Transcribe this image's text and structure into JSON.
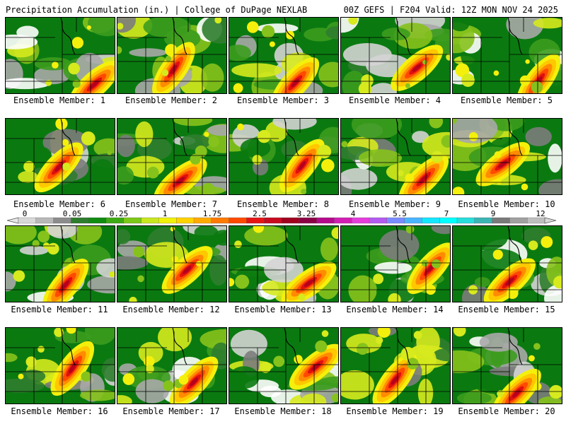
{
  "header": {
    "title": "Precipitation Accumulation (in.) | College of DuPage NEXLAB",
    "run_info": "00Z GEFS | F204 Valid: 12Z MON NOV 24 2025"
  },
  "members": [
    {
      "label": "Ensemble Member: 1",
      "member": 1
    },
    {
      "label": "Ensemble Member: 2",
      "member": 2
    },
    {
      "label": "Ensemble Member: 3",
      "member": 3
    },
    {
      "label": "Ensemble Member: 4",
      "member": 4
    },
    {
      "label": "Ensemble Member: 5",
      "member": 5
    },
    {
      "label": "Ensemble Member: 6",
      "member": 6
    },
    {
      "label": "Ensemble Member: 7",
      "member": 7
    },
    {
      "label": "Ensemble Member: 8",
      "member": 8
    },
    {
      "label": "Ensemble Member: 9",
      "member": 9
    },
    {
      "label": "Ensemble Member: 10",
      "member": 10
    },
    {
      "label": "Ensemble Member: 11",
      "member": 11
    },
    {
      "label": "Ensemble Member: 12",
      "member": 12
    },
    {
      "label": "Ensemble Member: 13",
      "member": 13
    },
    {
      "label": "Ensemble Member: 14",
      "member": 14
    },
    {
      "label": "Ensemble Member: 15",
      "member": 15
    },
    {
      "label": "Ensemble Member: 16",
      "member": 16
    },
    {
      "label": "Ensemble Member: 17",
      "member": 17
    },
    {
      "label": "Ensemble Member: 18",
      "member": 18
    },
    {
      "label": "Ensemble Member: 19",
      "member": 19
    },
    {
      "label": "Ensemble Member: 20",
      "member": 20
    }
  ],
  "colorbar": {
    "tick_labels": [
      "0",
      "0.05",
      "0.25",
      "1",
      "1.75",
      "2.5",
      "3.25",
      "4",
      "5.5",
      "7",
      "9",
      "12"
    ],
    "colors": [
      "#d8d8d8",
      "#b8b8b8",
      "#8c8c8c",
      "#2e7d2e",
      "#108c10",
      "#3caa14",
      "#7cc818",
      "#c8e61e",
      "#f0f00a",
      "#ffd200",
      "#ffaa00",
      "#ff7a00",
      "#ff4a00",
      "#e61414",
      "#c80a1e",
      "#a0001e",
      "#8c0046",
      "#b40a8c",
      "#d21eb4",
      "#e63cdc",
      "#b45af0",
      "#7a8cff",
      "#4ab4ff",
      "#14e6ff",
      "#00ffff",
      "#28dcdc",
      "#3cb4b4",
      "#7a7a7a",
      "#a0a0a0",
      "#bebebe"
    ]
  }
}
